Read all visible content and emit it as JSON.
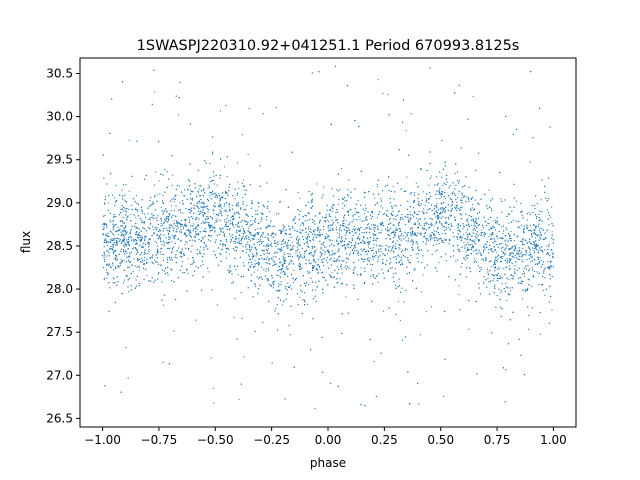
{
  "chart_data": {
    "type": "scatter",
    "title": "1SWASPJ220310.92+041251.1 Period 670993.8125s",
    "xlabel": "phase",
    "ylabel": "flux",
    "xlim": [
      -1.1,
      1.1
    ],
    "ylim": [
      26.4,
      30.68
    ],
    "xticks": [
      -1.0,
      -0.75,
      -0.5,
      -0.25,
      0.0,
      0.25,
      0.5,
      0.75,
      1.0
    ],
    "xtick_labels": [
      "−1.00",
      "−0.75",
      "−0.50",
      "−0.25",
      "0.00",
      "0.25",
      "0.50",
      "0.75",
      "1.00"
    ],
    "yticks": [
      26.5,
      27.0,
      27.5,
      28.0,
      28.5,
      29.0,
      29.5,
      30.0,
      30.5
    ],
    "ytick_labels": [
      "26.5",
      "27.0",
      "27.5",
      "28.0",
      "28.5",
      "29.0",
      "29.5",
      "30.0",
      "30.5"
    ],
    "grid": false,
    "marker_color": "#1f77b4",
    "series": [
      {
        "x": [
          -1.0,
          -0.9,
          -0.8,
          -0.7,
          -0.6,
          -0.5,
          -0.4,
          -0.3,
          -0.22,
          -0.1,
          0.0,
          0.1,
          0.2,
          0.3,
          0.4,
          0.5,
          0.6,
          0.7,
          0.78,
          0.9,
          1.0
        ],
        "y": [
          28.5,
          28.6,
          28.6,
          28.65,
          28.75,
          28.85,
          28.7,
          28.5,
          28.35,
          28.5,
          28.55,
          28.6,
          28.6,
          28.65,
          28.75,
          28.85,
          28.7,
          28.5,
          28.35,
          28.5,
          28.5
        ]
      }
    ]
  }
}
